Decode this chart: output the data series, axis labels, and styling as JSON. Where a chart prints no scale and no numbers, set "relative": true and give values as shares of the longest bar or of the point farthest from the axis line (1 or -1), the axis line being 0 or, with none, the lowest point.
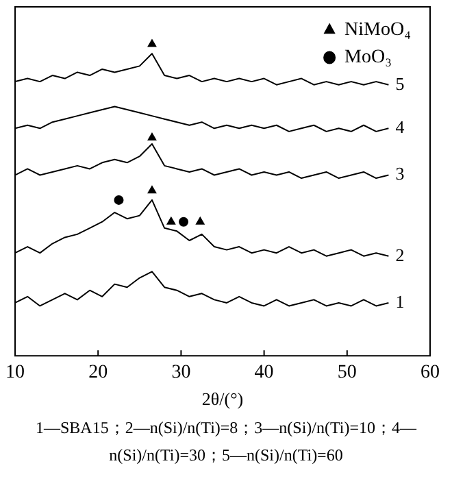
{
  "chart_data": {
    "type": "line",
    "relative": true,
    "xlabel": "2θ/(°)",
    "xlim": [
      10,
      60
    ],
    "xticks": [
      10,
      20,
      30,
      40,
      50,
      60
    ],
    "grid": false,
    "legend": "top right",
    "marker": "none",
    "line_style": "solid",
    "x": [
      10,
      11.5,
      13,
      14.5,
      16,
      17.5,
      19,
      20.5,
      22,
      23.5,
      25,
      26.5,
      28,
      29.5,
      31,
      32.5,
      34,
      35.5,
      37,
      38.5,
      40,
      41.5,
      43,
      44.5,
      46,
      47.5,
      49,
      50.5,
      52,
      53.5,
      55
    ],
    "series": [
      {
        "name": "1",
        "color": "#000000",
        "values": [
          0.17,
          0.19,
          0.16,
          0.18,
          0.2,
          0.18,
          0.21,
          0.19,
          0.23,
          0.22,
          0.25,
          0.27,
          0.22,
          0.21,
          0.19,
          0.2,
          0.18,
          0.17,
          0.19,
          0.17,
          0.16,
          0.18,
          0.16,
          0.17,
          0.18,
          0.16,
          0.17,
          0.16,
          0.18,
          0.16,
          0.17
        ]
      },
      {
        "name": "2",
        "color": "#000000",
        "values": [
          0.33,
          0.35,
          0.33,
          0.36,
          0.38,
          0.39,
          0.41,
          0.43,
          0.46,
          0.44,
          0.45,
          0.5,
          0.41,
          0.4,
          0.37,
          0.39,
          0.35,
          0.34,
          0.35,
          0.33,
          0.34,
          0.33,
          0.35,
          0.33,
          0.34,
          0.32,
          0.33,
          0.34,
          0.32,
          0.33,
          0.32
        ]
      },
      {
        "name": "3",
        "color": "#000000",
        "values": [
          0.58,
          0.6,
          0.58,
          0.59,
          0.6,
          0.61,
          0.6,
          0.62,
          0.63,
          0.62,
          0.64,
          0.68,
          0.61,
          0.6,
          0.59,
          0.6,
          0.58,
          0.59,
          0.6,
          0.58,
          0.59,
          0.58,
          0.59,
          0.57,
          0.58,
          0.59,
          0.57,
          0.58,
          0.59,
          0.57,
          0.58
        ]
      },
      {
        "name": "4",
        "color": "#000000",
        "values": [
          0.73,
          0.74,
          0.73,
          0.75,
          0.76,
          0.77,
          0.78,
          0.79,
          0.8,
          0.79,
          0.78,
          0.77,
          0.76,
          0.75,
          0.74,
          0.75,
          0.73,
          0.74,
          0.73,
          0.74,
          0.73,
          0.74,
          0.72,
          0.73,
          0.74,
          0.72,
          0.73,
          0.72,
          0.74,
          0.72,
          0.73
        ]
      },
      {
        "name": "5",
        "color": "#000000",
        "values": [
          0.88,
          0.89,
          0.88,
          0.9,
          0.89,
          0.91,
          0.9,
          0.92,
          0.91,
          0.92,
          0.93,
          0.97,
          0.9,
          0.89,
          0.9,
          0.88,
          0.89,
          0.88,
          0.89,
          0.88,
          0.89,
          0.87,
          0.88,
          0.89,
          0.87,
          0.88,
          0.87,
          0.88,
          0.87,
          0.88,
          0.87
        ]
      },
      {
        "name": "NiMoO₄",
        "type": "scatter",
        "marker": "triangle",
        "color": "#000000",
        "x": [
          26.5,
          26.5,
          26.5,
          28.8,
          32.3
        ],
        "values": [
          1.0,
          0.7,
          0.53,
          0.43,
          0.43
        ]
      },
      {
        "name": "MoO₃",
        "type": "scatter",
        "marker": "circle",
        "color": "#000000",
        "x": [
          22.5,
          30.3
        ],
        "values": [
          0.5,
          0.43
        ]
      }
    ],
    "annotations": [
      "1—SBA15；2—n(Si)/n(Ti)=8；3—n(Si)/n(Ti)=10；4—n(Si)/n(Ti)=30；5—n(Si)/n(Ti)=60"
    ]
  }
}
